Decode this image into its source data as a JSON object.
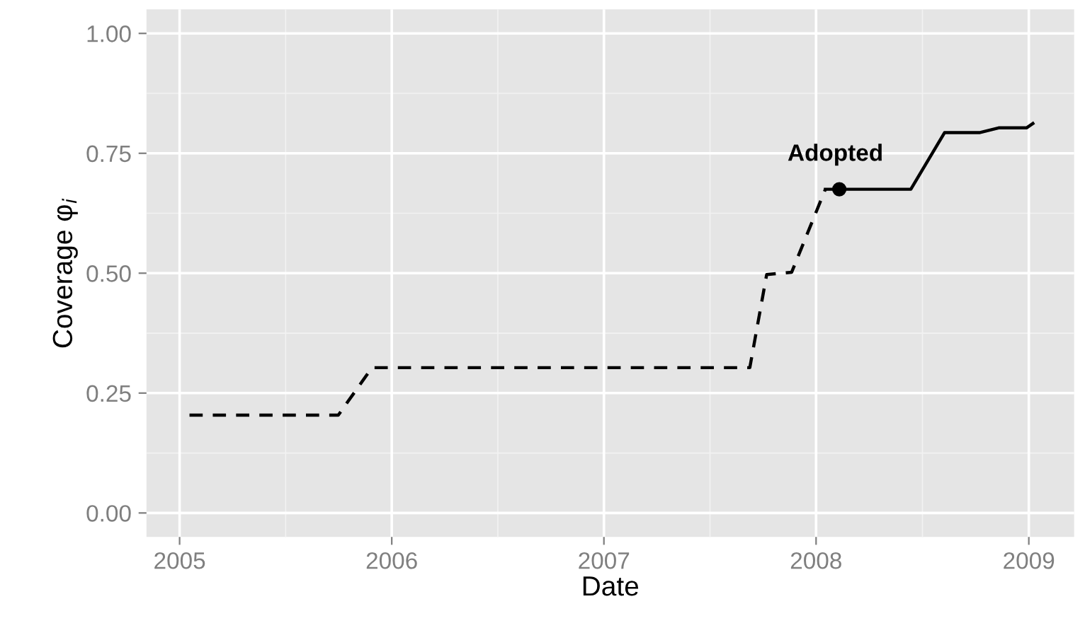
{
  "chart_data": {
    "type": "line",
    "xlabel": "Date",
    "ylabel": "Coverage φ$_{i}$",
    "series": [
      {
        "color": "#000000",
        "line_style": "dashed",
        "marker": "none",
        "x": [
          "2005-01-18",
          "2005-10-01",
          "2005-11-28",
          "2007-09-09",
          "2007-10-08",
          "2007-11-20",
          "2008-01-17"
        ],
        "values": [
          0.204,
          0.204,
          0.303,
          0.303,
          0.497,
          0.502,
          0.675
        ]
      },
      {
        "color": "#000000",
        "line_style": "solid",
        "marker": "none",
        "x": [
          "2008-01-17",
          "2008-02-10",
          "2008-06-12",
          "2008-08-09",
          "2008-10-08",
          "2008-11-10",
          "2008-12-28",
          "2009-01-08"
        ],
        "values": [
          0.675,
          0.675,
          0.675,
          0.793,
          0.793,
          0.803,
          0.803,
          0.812
        ]
      },
      {
        "type": "scatter",
        "color": "#000000",
        "marker": "circle",
        "x": [
          "2008-02-10"
        ],
        "values": [
          0.675
        ]
      }
    ],
    "annotations": [
      {
        "text": "Adopted",
        "x": "2008-02-10",
        "y": 0.675
      }
    ],
    "xlim": [
      "2004-11-05",
      "2009-03-20"
    ],
    "xticks": [
      {
        "value": "2005-01-01",
        "label": "2005"
      },
      {
        "value": "2006-01-01",
        "label": "2006"
      },
      {
        "value": "2007-01-01",
        "label": "2007"
      },
      {
        "value": "2008-01-01",
        "label": "2008"
      },
      {
        "value": "2009-01-01",
        "label": "2009"
      }
    ],
    "ylim": [
      -0.05,
      1.05
    ],
    "yticks": [
      {
        "value": 0,
        "label": "0.00"
      },
      {
        "value": 0.25,
        "label": "0.25"
      },
      {
        "value": 0.5,
        "label": "0.50"
      },
      {
        "value": 0.75,
        "label": "0.75"
      },
      {
        "value": 1,
        "label": "1.00"
      }
    ],
    "grid": true,
    "legend": false
  }
}
